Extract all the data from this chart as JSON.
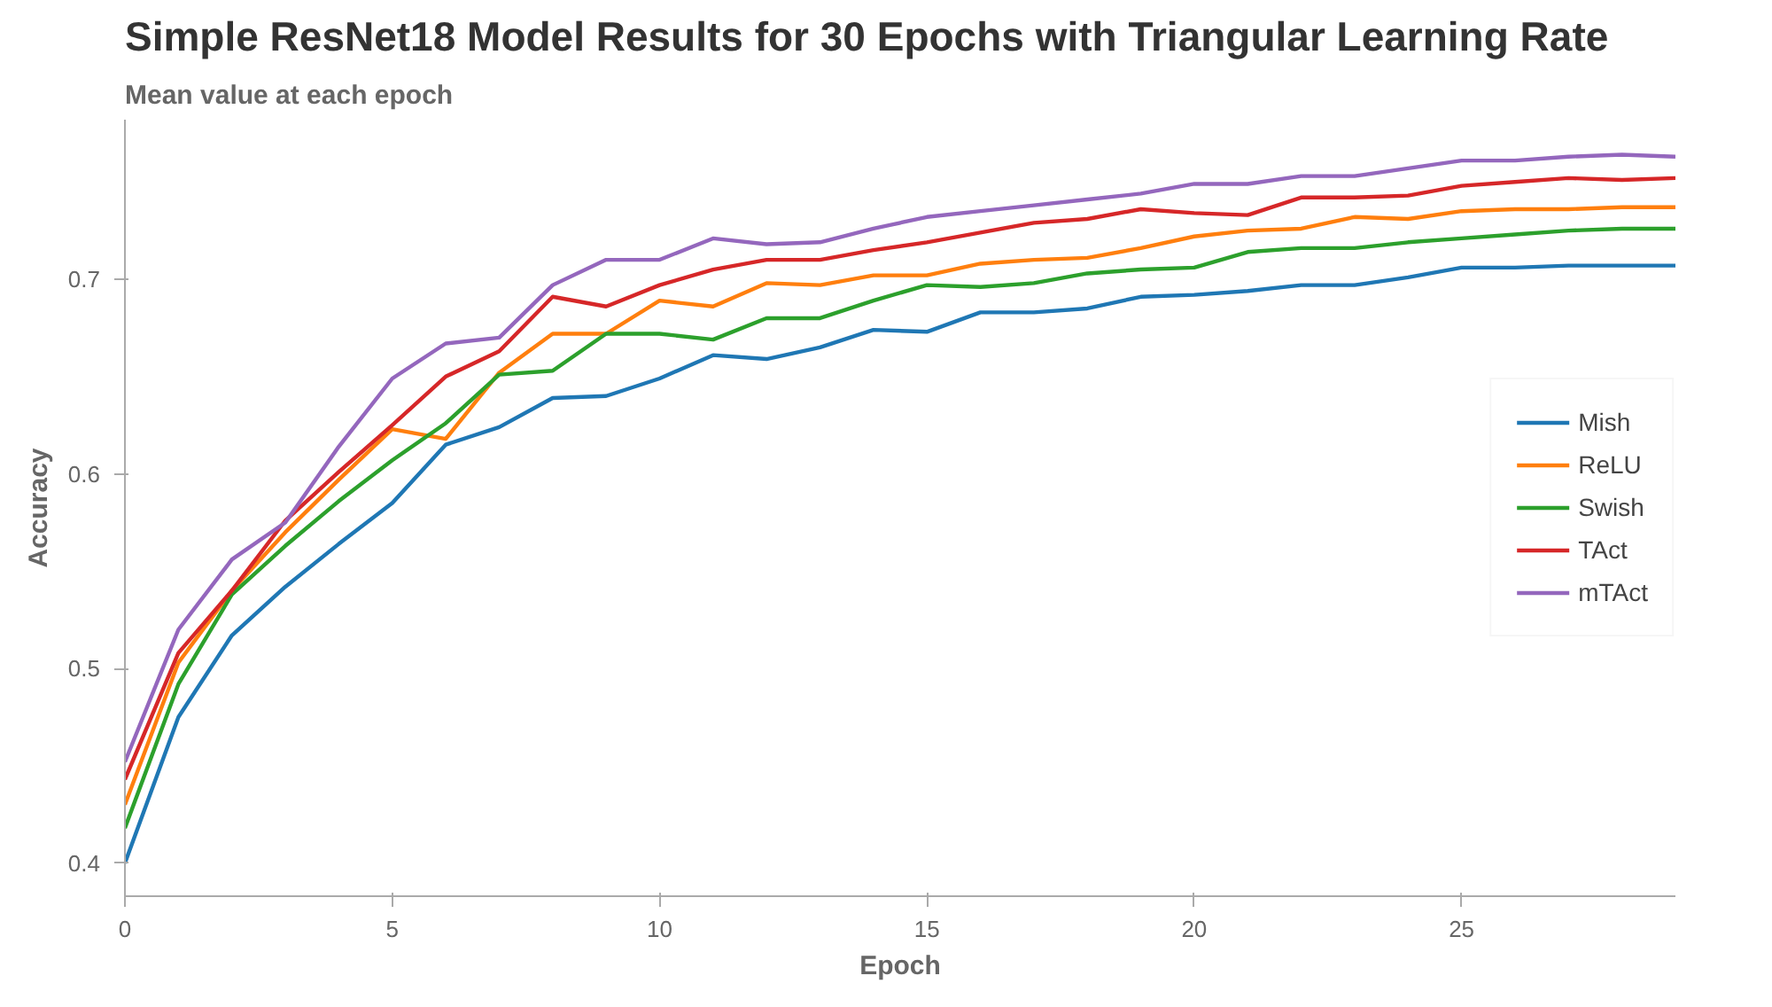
{
  "chart_data": {
    "type": "line",
    "title": "Simple ResNet18 Model Results for 30 Epochs with Triangular Learning Rate",
    "subtitle": "Mean value at each epoch",
    "xlabel": "Epoch",
    "ylabel": "Accuracy",
    "x": [
      0,
      1,
      2,
      3,
      4,
      5,
      6,
      7,
      8,
      9,
      10,
      11,
      12,
      13,
      14,
      15,
      16,
      17,
      18,
      19,
      20,
      21,
      22,
      23,
      24,
      25,
      26,
      27,
      28,
      29
    ],
    "xlim": [
      0,
      29
    ],
    "ylim": [
      0.383,
      0.782
    ],
    "xticks": [
      0,
      5,
      10,
      15,
      20,
      25
    ],
    "yticks": [
      0.4,
      0.5,
      0.6,
      0.7
    ],
    "grid": false,
    "legend": "right",
    "marker": "none",
    "line_style": "solid",
    "series": [
      {
        "name": "Mish",
        "color": "#1f77b4",
        "values": [
          0.4,
          0.475,
          0.517,
          0.542,
          0.564,
          0.585,
          0.615,
          0.624,
          0.639,
          0.64,
          0.649,
          0.661,
          0.659,
          0.665,
          0.674,
          0.673,
          0.683,
          0.683,
          0.685,
          0.691,
          0.692,
          0.694,
          0.697,
          0.697,
          0.701,
          0.706,
          0.706,
          0.707,
          0.707,
          0.707
        ]
      },
      {
        "name": "ReLU",
        "color": "#ff7f0e",
        "values": [
          0.43,
          0.503,
          0.54,
          0.57,
          0.597,
          0.623,
          0.618,
          0.652,
          0.672,
          0.672,
          0.689,
          0.686,
          0.698,
          0.697,
          0.702,
          0.702,
          0.708,
          0.71,
          0.711,
          0.716,
          0.722,
          0.725,
          0.726,
          0.732,
          0.731,
          0.735,
          0.736,
          0.736,
          0.737,
          0.737
        ]
      },
      {
        "name": "Swish",
        "color": "#2ca02c",
        "values": [
          0.418,
          0.492,
          0.538,
          0.563,
          0.586,
          0.607,
          0.626,
          0.651,
          0.653,
          0.672,
          0.672,
          0.669,
          0.68,
          0.68,
          0.689,
          0.697,
          0.696,
          0.698,
          0.703,
          0.705,
          0.706,
          0.714,
          0.716,
          0.716,
          0.719,
          0.721,
          0.723,
          0.725,
          0.726,
          0.726
        ]
      },
      {
        "name": "TAct",
        "color": "#d62728",
        "values": [
          0.443,
          0.508,
          0.54,
          0.576,
          0.601,
          0.625,
          0.65,
          0.663,
          0.691,
          0.686,
          0.697,
          0.705,
          0.71,
          0.71,
          0.715,
          0.719,
          0.724,
          0.729,
          0.731,
          0.736,
          0.734,
          0.733,
          0.742,
          0.742,
          0.743,
          0.748,
          0.75,
          0.752,
          0.751,
          0.752
        ]
      },
      {
        "name": "mTAct",
        "color": "#9467bd",
        "values": [
          0.452,
          0.52,
          0.556,
          0.575,
          0.614,
          0.649,
          0.667,
          0.67,
          0.697,
          0.71,
          0.71,
          0.721,
          0.718,
          0.719,
          0.726,
          0.732,
          0.735,
          0.738,
          0.741,
          0.744,
          0.749,
          0.749,
          0.753,
          0.753,
          0.757,
          0.761,
          0.761,
          0.763,
          0.764,
          0.763
        ]
      }
    ]
  }
}
